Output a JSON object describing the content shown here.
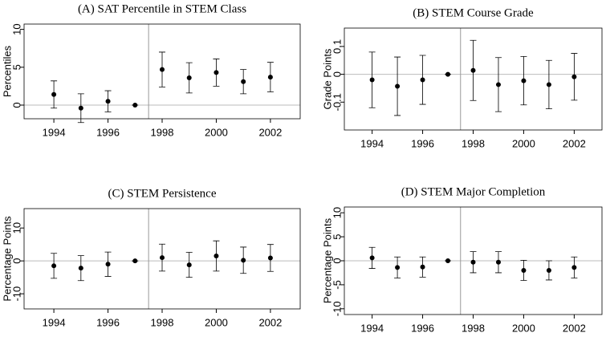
{
  "chart_data": [
    {
      "type": "errorbar",
      "title": "(A) SAT Percentile in STEM Class",
      "ylabel": "Percentiles",
      "x": [
        1994,
        1995,
        1996,
        1997,
        1998,
        1999,
        2000,
        2001,
        2002
      ],
      "values": [
        1.4,
        -0.4,
        0.5,
        0,
        4.7,
        3.6,
        4.3,
        3.1,
        3.7
      ],
      "errors": [
        1.8,
        1.9,
        1.4,
        0,
        2.3,
        2,
        1.8,
        1.6,
        1.95
      ],
      "xlim": [
        1992.9,
        2003.1
      ],
      "xticks": [
        1994,
        1996,
        1998,
        2000,
        2002
      ],
      "ylim": [
        -1.8,
        10.7
      ],
      "yticks": [
        0,
        5,
        10
      ],
      "vline": 1997.5,
      "hline": 0
    },
    {
      "type": "errorbar",
      "title": "(B) STEM Course Grade",
      "ylabel": "Grade Points",
      "x": [
        1994,
        1995,
        1996,
        1997,
        1998,
        1999,
        2000,
        2001,
        2002
      ],
      "values": [
        -0.02,
        -0.043,
        -0.02,
        0,
        0.014,
        -0.037,
        -0.023,
        -0.037,
        -0.009
      ],
      "errors": [
        0.1,
        0.105,
        0.088,
        0,
        0.108,
        0.097,
        0.087,
        0.087,
        0.084
      ],
      "xlim": [
        1992.9,
        2003.1
      ],
      "xticks": [
        1994,
        1996,
        1998,
        2000,
        2002
      ],
      "ylim": [
        -0.2,
        0.166
      ],
      "yticks": [
        -0.1,
        0,
        0.1
      ],
      "vline": 1997.5,
      "hline": 0
    },
    {
      "type": "errorbar",
      "title": "(C) STEM Persistence",
      "ylabel": "Percentage Points",
      "x": [
        1994,
        1995,
        1996,
        1997,
        1998,
        1999,
        2000,
        2001,
        2002
      ],
      "values": [
        -1.5,
        -2.2,
        -1,
        0,
        1,
        -1.2,
        1.5,
        0.2,
        0.9
      ],
      "errors": [
        3.8,
        3.8,
        3.7,
        0,
        4.1,
        3.8,
        4.6,
        4,
        4.1
      ],
      "xlim": [
        1992.9,
        2003.1
      ],
      "xticks": [
        1994,
        1996,
        1998,
        2000,
        2002
      ],
      "ylim": [
        -14.6,
        15.9
      ],
      "yticks": [
        -10,
        0,
        10
      ],
      "vline": 1997.5,
      "hline": 0
    },
    {
      "type": "errorbar",
      "title": "(D) STEM Major Completion",
      "ylabel": "Percentage Points",
      "x": [
        1994,
        1995,
        1996,
        1997,
        1998,
        1999,
        2000,
        2001,
        2002
      ],
      "values": [
        0.6,
        -1.4,
        -1.3,
        0,
        -0.3,
        -0.3,
        -2,
        -2,
        -1.4
      ],
      "errors": [
        2.2,
        2.2,
        2.1,
        0,
        2.2,
        2.2,
        2.1,
        2,
        2.2
      ],
      "xlim": [
        1992.9,
        2003.1
      ],
      "xticks": [
        1994,
        1996,
        1998,
        2000,
        2002
      ],
      "ylim": [
        -11.2,
        11.2
      ],
      "yticks": [
        -10,
        -5,
        0,
        5,
        10
      ],
      "vline": 1997.5,
      "hline": 0
    }
  ]
}
